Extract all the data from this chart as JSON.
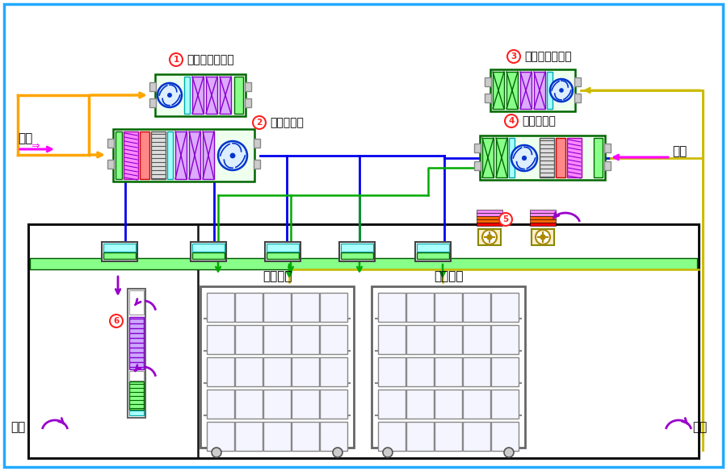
{
  "bg_color": "#ffffff",
  "border_color": "#22aaff",
  "labels": {
    "1": "系统排风处理箱",
    "2": "系统空调箱",
    "3": "笼盒排风处理箱",
    "4": "笼盒空调箱",
    "xinfeng_left": "新风",
    "xinfeng_right": "新风",
    "huifeng_left": "回风",
    "huifeng_right": "回风",
    "dongwu1": "动物笼盒",
    "dongwu2": "动物笼盒"
  },
  "colors": {
    "orange": "#FFA500",
    "blue": "#0000EE",
    "green": "#00BB00",
    "yellow": "#DDCC00",
    "magenta": "#FF00FF",
    "purple": "#9900CC",
    "cyan": "#00CCCC",
    "red": "#FF0000",
    "dark_green": "#005500",
    "light_green": "#88FF88",
    "gray": "#888888",
    "black": "#111111",
    "circle_red": "#FF2222",
    "room_border": "#111111"
  }
}
